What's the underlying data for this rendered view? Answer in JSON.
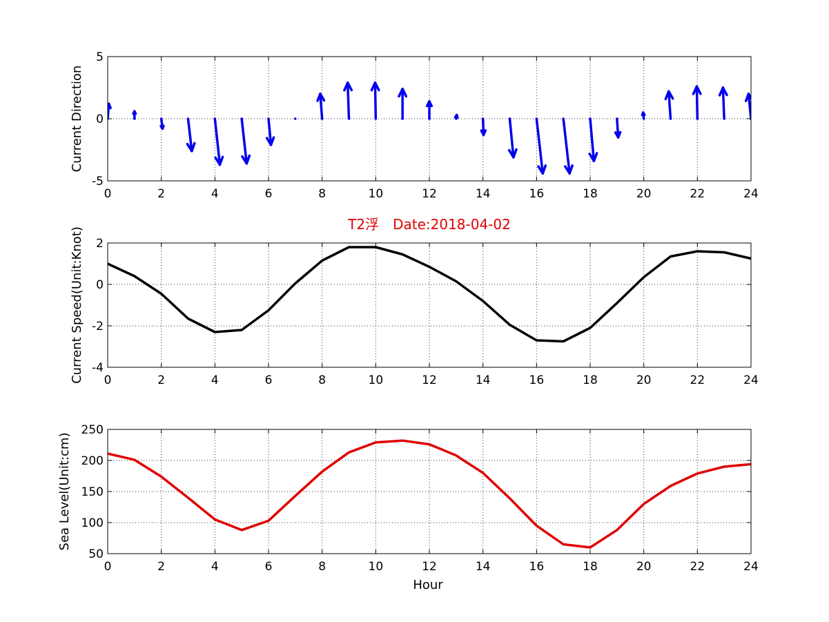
{
  "figure": {
    "title": "T2浮　Date:2018-04-02",
    "xlabel": "Hour"
  },
  "chart_data": [
    {
      "type": "quiver",
      "ylabel": "Current Direction",
      "xlim": [
        0,
        24
      ],
      "ylim": [
        -5,
        5
      ],
      "xticks": [
        0,
        2,
        4,
        6,
        8,
        10,
        12,
        14,
        16,
        18,
        20,
        22,
        24
      ],
      "yticks": [
        -5,
        0,
        5
      ],
      "grid": true,
      "color": "#0000ee",
      "x": [
        0,
        1,
        2,
        3,
        4,
        5,
        6,
        7,
        8,
        9,
        10,
        11,
        12,
        13,
        14,
        15,
        16,
        17,
        18,
        19,
        20,
        21,
        22,
        23,
        24
      ],
      "u": [
        0.1,
        0.0,
        0.1,
        0.3,
        0.4,
        0.4,
        0.2,
        0.0,
        -0.15,
        -0.1,
        -0.05,
        0.0,
        0.0,
        0.05,
        0.05,
        0.3,
        0.5,
        0.5,
        0.3,
        0.1,
        -0.05,
        -0.15,
        -0.05,
        -0.1,
        -0.2
      ],
      "v": [
        1.2,
        0.6,
        -0.8,
        -2.6,
        -3.7,
        -3.6,
        -2.1,
        0.0,
        2.0,
        2.9,
        2.9,
        2.4,
        1.4,
        0.3,
        -1.3,
        -3.1,
        -4.4,
        -4.4,
        -3.4,
        -1.5,
        0.5,
        2.2,
        2.6,
        2.5,
        2.0
      ]
    },
    {
      "type": "line",
      "ylabel": "Current Speed(Unit:Knot)",
      "xlim": [
        0,
        24
      ],
      "ylim": [
        -4,
        2
      ],
      "xticks": [
        0,
        2,
        4,
        6,
        8,
        10,
        12,
        14,
        16,
        18,
        20,
        22,
        24
      ],
      "yticks": [
        -4,
        -2,
        0,
        2
      ],
      "grid": true,
      "color": "#000000",
      "x": [
        0,
        1,
        2,
        3,
        4,
        5,
        6,
        7,
        8,
        9,
        10,
        11,
        12,
        13,
        14,
        15,
        16,
        17,
        18,
        19,
        20,
        21,
        22,
        23,
        24
      ],
      "y": [
        1.0,
        0.4,
        -0.45,
        -1.65,
        -2.3,
        -2.2,
        -1.25,
        0.05,
        1.15,
        1.8,
        1.8,
        1.45,
        0.85,
        0.15,
        -0.8,
        -1.95,
        -2.7,
        -2.75,
        -2.1,
        -0.9,
        0.35,
        1.35,
        1.6,
        1.55,
        1.25
      ]
    },
    {
      "type": "line",
      "ylabel": "Sea Level(Unit:cm)",
      "xlim": [
        0,
        24
      ],
      "ylim": [
        50,
        250
      ],
      "xticks": [
        0,
        2,
        4,
        6,
        8,
        10,
        12,
        14,
        16,
        18,
        20,
        22,
        24
      ],
      "yticks": [
        50,
        100,
        150,
        200,
        250
      ],
      "grid": true,
      "color": "#e00000",
      "x": [
        0,
        1,
        2,
        3,
        4,
        5,
        6,
        7,
        8,
        9,
        10,
        11,
        12,
        13,
        14,
        15,
        16,
        17,
        18,
        19,
        20,
        21,
        22,
        23,
        24
      ],
      "y": [
        211,
        201,
        174,
        140,
        105,
        88,
        103,
        143,
        182,
        213,
        229,
        232,
        226,
        208,
        180,
        139,
        95,
        65,
        60,
        88,
        130,
        159,
        179,
        190,
        194
      ]
    }
  ]
}
